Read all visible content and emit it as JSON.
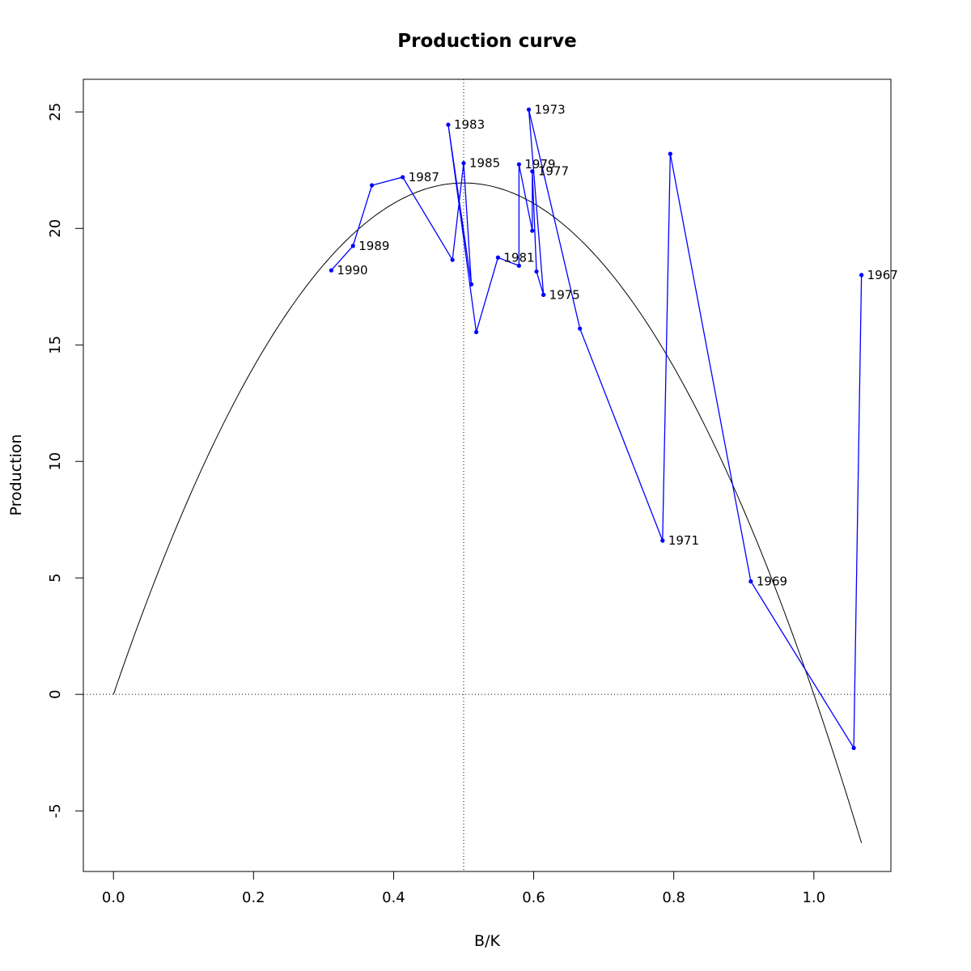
{
  "chart_data": {
    "type": "line",
    "title": "Production curve",
    "xlabel": "B/K",
    "ylabel": "Production",
    "xlim": [
      -0.043,
      1.11
    ],
    "ylim": [
      -7.6,
      26.4
    ],
    "x_ticks": [
      0.0,
      0.2,
      0.4,
      0.6,
      0.8,
      1.0
    ],
    "x_tick_labels": [
      "0.0",
      "0.2",
      "0.4",
      "0.6",
      "0.8",
      "1.0"
    ],
    "y_ticks": [
      -5,
      0,
      5,
      10,
      15,
      20,
      25
    ],
    "y_tick_labels": [
      "-5",
      "0",
      "5",
      "10",
      "15",
      "20",
      "25"
    ],
    "grid": false,
    "reference_lines": {
      "vertical_x": 0.5,
      "horizontal_y": 0
    },
    "model_curve": {
      "form": "r*x*(1-x)*scale",
      "peak_x": 0.5,
      "peak_y": 21.95,
      "x_range": [
        0,
        1.068
      ],
      "color": "#000000"
    },
    "series": [
      {
        "color": "#0000ff",
        "points": [
          {
            "x": 1.068,
            "y": 18.0,
            "label": "1967"
          },
          {
            "x": 1.057,
            "y": -2.3,
            "label": ""
          },
          {
            "x": 0.91,
            "y": 4.85,
            "label": "1969"
          },
          {
            "x": 0.795,
            "y": 23.2,
            "label": ""
          },
          {
            "x": 0.784,
            "y": 6.6,
            "label": "1971"
          },
          {
            "x": 0.666,
            "y": 15.7,
            "label": ""
          },
          {
            "x": 0.593,
            "y": 25.1,
            "label": "1973"
          },
          {
            "x": 0.614,
            "y": 17.15,
            "label": ""
          },
          {
            "x": 0.614,
            "y": 17.15,
            "label": "1975"
          },
          {
            "x": 0.604,
            "y": 18.15,
            "label": ""
          },
          {
            "x": 0.598,
            "y": 22.45,
            "label": "1977"
          },
          {
            "x": 0.598,
            "y": 19.9,
            "label": ""
          },
          {
            "x": 0.579,
            "y": 22.75,
            "label": "1979"
          },
          {
            "x": 0.579,
            "y": 18.4,
            "label": ""
          },
          {
            "x": 0.549,
            "y": 18.75,
            "label": "1981"
          },
          {
            "x": 0.518,
            "y": 15.55,
            "label": ""
          },
          {
            "x": 0.478,
            "y": 24.45,
            "label": "1983"
          },
          {
            "x": 0.511,
            "y": 17.6,
            "label": ""
          },
          {
            "x": 0.5,
            "y": 22.8,
            "label": "1985"
          },
          {
            "x": 0.484,
            "y": 18.65,
            "label": ""
          },
          {
            "x": 0.413,
            "y": 22.2,
            "label": "1987"
          },
          {
            "x": 0.369,
            "y": 21.85,
            "label": ""
          },
          {
            "x": 0.342,
            "y": 19.25,
            "label": "1989"
          },
          {
            "x": 0.311,
            "y": 18.2,
            "label": "1990"
          }
        ]
      }
    ]
  }
}
